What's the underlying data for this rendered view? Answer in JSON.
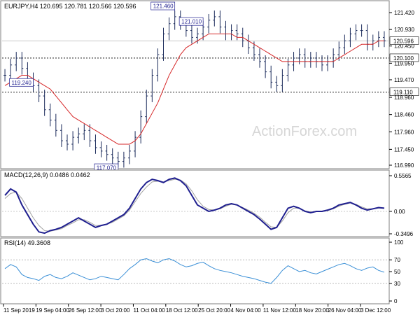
{
  "chart_data": [
    {
      "type": "candlestick",
      "header": "EURJPY,H4  120.695 120.781 120.566 120.596",
      "watermark": "ActionForex.com",
      "ylim": [
        116.99,
        121.42
      ],
      "y_ticks": [
        "121.420",
        "120.930",
        "120.450",
        "119.950",
        "119.470",
        "118.960",
        "118.460",
        "117.960",
        "117.450",
        "116.990"
      ],
      "current_price_label": "120.596",
      "current_price": 120.596,
      "level_lines": [
        {
          "label": "120.100",
          "value": 120.1
        },
        {
          "label": "119.110",
          "value": 119.11
        }
      ],
      "callouts": [
        {
          "label": "121.460",
          "value": 121.46
        },
        {
          "label": "121.010",
          "value": 121.01
        },
        {
          "label": "119.240",
          "value": 119.24
        },
        {
          "label": "117.070",
          "value": 117.07
        }
      ],
      "close_series": [
        119.6,
        119.9,
        120.1,
        119.8,
        119.5,
        119.3,
        119.0,
        118.6,
        118.3,
        118.0,
        117.7,
        117.6,
        117.8,
        117.9,
        118.0,
        117.7,
        117.5,
        117.4,
        117.3,
        117.2,
        117.1,
        117.2,
        117.4,
        117.8,
        118.4,
        119.0,
        119.6,
        120.2,
        120.8,
        121.1,
        121.3,
        121.1,
        120.9,
        120.7,
        120.8,
        121.0,
        121.2,
        121.3,
        121.0,
        120.8,
        120.9,
        120.8,
        120.6,
        120.4,
        120.2,
        120.0,
        119.7,
        119.4,
        119.3,
        119.6,
        119.9,
        120.1,
        120.2,
        120.0,
        120.1,
        120.0,
        119.9,
        120.0,
        120.2,
        120.4,
        120.6,
        120.8,
        120.9,
        120.9,
        120.5,
        120.6,
        120.7,
        120.6
      ],
      "moving_average": [
        119.3,
        119.4,
        119.5,
        119.6,
        119.6,
        119.5,
        119.4,
        119.3,
        119.2,
        119.0,
        118.8,
        118.6,
        118.4,
        118.3,
        118.2,
        118.1,
        118.0,
        117.9,
        117.8,
        117.7,
        117.6,
        117.6,
        117.6,
        117.7,
        117.9,
        118.2,
        118.5,
        118.8,
        119.2,
        119.6,
        119.9,
        120.2,
        120.4,
        120.5,
        120.6,
        120.7,
        120.8,
        120.8,
        120.8,
        120.8,
        120.8,
        120.7,
        120.7,
        120.6,
        120.5,
        120.4,
        120.3,
        120.2,
        120.1,
        120.0,
        120.0,
        120.0,
        120.0,
        120.0,
        120.0,
        120.0,
        120.0,
        120.0,
        120.0,
        120.1,
        120.2,
        120.3,
        120.4,
        120.5,
        120.5,
        120.5,
        120.6,
        120.6
      ]
    },
    {
      "type": "line",
      "header": "MACD(12,26,9) 0.0486 0.0462",
      "ylim": [
        -0.3496,
        0.5565
      ],
      "y_ticks": [
        "0.5565",
        "0.00",
        "-0.3496"
      ],
      "series": [
        {
          "values": [
            0.25,
            0.35,
            0.3,
            0.1,
            -0.05,
            -0.2,
            -0.32,
            -0.34,
            -0.3,
            -0.28,
            -0.25,
            -0.2,
            -0.15,
            -0.1,
            -0.15,
            -0.2,
            -0.25,
            -0.22,
            -0.2,
            -0.15,
            -0.1,
            -0.05,
            0.05,
            0.2,
            0.35,
            0.45,
            0.5,
            0.48,
            0.45,
            0.5,
            0.52,
            0.48,
            0.4,
            0.25,
            0.1,
            0.05,
            0.0,
            0.02,
            0.05,
            0.1,
            0.12,
            0.1,
            0.05,
            0.0,
            -0.05,
            -0.12,
            -0.2,
            -0.28,
            -0.25,
            -0.1,
            0.05,
            0.08,
            0.05,
            0.0,
            -0.02,
            0.0,
            0.0,
            0.02,
            0.05,
            0.1,
            0.12,
            0.14,
            0.1,
            0.05,
            0.02,
            0.04,
            0.06,
            0.05
          ]
        },
        {
          "values": [
            0.2,
            0.28,
            0.3,
            0.2,
            0.05,
            -0.1,
            -0.22,
            -0.3,
            -0.31,
            -0.29,
            -0.27,
            -0.22,
            -0.18,
            -0.13,
            -0.13,
            -0.17,
            -0.22,
            -0.22,
            -0.2,
            -0.17,
            -0.12,
            -0.07,
            0.02,
            0.15,
            0.28,
            0.38,
            0.46,
            0.47,
            0.46,
            0.48,
            0.5,
            0.49,
            0.43,
            0.32,
            0.18,
            0.08,
            0.03,
            0.02,
            0.04,
            0.08,
            0.11,
            0.1,
            0.06,
            0.02,
            -0.03,
            -0.09,
            -0.17,
            -0.24,
            -0.25,
            -0.15,
            -0.02,
            0.05,
            0.05,
            0.01,
            -0.01,
            0.0,
            0.0,
            0.01,
            0.04,
            0.08,
            0.11,
            0.13,
            0.11,
            0.07,
            0.04,
            0.04,
            0.05,
            0.05
          ]
        }
      ]
    },
    {
      "type": "line",
      "header": "RSI(14) 49.3608",
      "ylim": [
        0,
        100
      ],
      "y_ticks": [
        "100",
        "70",
        "50",
        "30",
        "0"
      ],
      "reference_levels": [
        70,
        30
      ],
      "series": [
        {
          "values": [
            55,
            62,
            58,
            45,
            40,
            38,
            35,
            42,
            45,
            40,
            38,
            42,
            48,
            44,
            40,
            36,
            38,
            42,
            40,
            38,
            36,
            45,
            55,
            62,
            70,
            72,
            68,
            65,
            70,
            72,
            68,
            62,
            58,
            60,
            64,
            66,
            60,
            55,
            52,
            50,
            48,
            45,
            42,
            40,
            38,
            35,
            32,
            30,
            40,
            52,
            60,
            55,
            50,
            52,
            48,
            46,
            50,
            54,
            58,
            62,
            64,
            60,
            55,
            52,
            56,
            58,
            52,
            49
          ]
        }
      ]
    },
    {
      "type": "time-axis",
      "x_ticks": [
        "11 Sep 2019",
        "19 Sep 04:00",
        "26 Sep 12:00",
        "3 Oct 20:00",
        "11 Oct 04:00",
        "18 Oct 12:00",
        "25 Oct 20:00",
        "4 Nov 04:00",
        "11 Nov 12:00",
        "18 Nov 20:00",
        "26 Nov 04:00",
        "3 Dec 12:00"
      ]
    }
  ]
}
